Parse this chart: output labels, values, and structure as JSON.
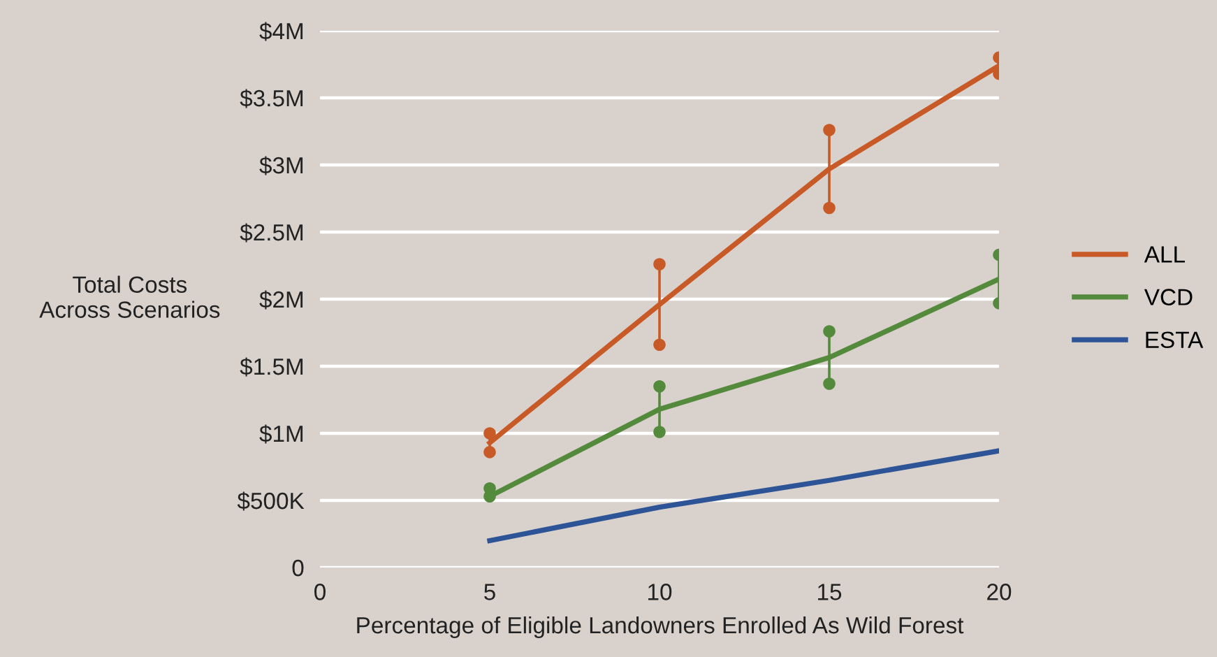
{
  "chart_data": {
    "type": "line",
    "xlabel": "Percentage of Eligible Landowners Enrolled As Wild Forest",
    "ylabel": "Total Costs\nAcross Scenarios",
    "x": [
      5,
      10,
      15,
      20
    ],
    "series": [
      {
        "name": "ALL",
        "color": "#c85a27",
        "values": [
          930000,
          1960000,
          2970000,
          3740000
        ],
        "errors": [
          70000,
          300000,
          290000,
          60000
        ]
      },
      {
        "type": "scatter",
        "marker": "circle",
        "color": "#c85a27",
        "values": [
          860000,
          1660000,
          2680000,
          3680000
        ]
      },
      {
        "type": "scatter",
        "marker": "circle",
        "color": "#c85a27",
        "values": [
          1000000,
          2260000,
          3260000,
          3800000
        ]
      },
      {
        "name": "VCD",
        "color": "#548a3c",
        "values": [
          530000,
          1180000,
          1565000,
          2150000
        ],
        "errors": [
          null,
          170000,
          195000,
          180000
        ]
      },
      {
        "type": "scatter",
        "marker": "circle",
        "color": "#548a3c",
        "values": [
          530000,
          1010000,
          1370000,
          1970000
        ]
      },
      {
        "type": "scatter",
        "marker": "circle",
        "color": "#548a3c",
        "values": [
          590000,
          1350000,
          1760000,
          2330000
        ]
      },
      {
        "name": "ESTA",
        "color": "#2d5497",
        "values": [
          200000,
          450000,
          650000,
          870000
        ]
      }
    ],
    "xlim": [
      0,
      20
    ],
    "xticks": [
      0,
      5,
      10,
      15,
      20
    ],
    "ylim": [
      0,
      4000000
    ],
    "yticks": [
      0,
      {
        "value": 500000,
        "label": "$500K"
      },
      {
        "value": 1000000,
        "label": "$1M"
      },
      {
        "value": 1500000,
        "label": "$1.5M"
      },
      {
        "value": 2000000,
        "label": "$2M"
      },
      {
        "value": 2500000,
        "label": "$2.5M"
      },
      {
        "value": 3000000,
        "label": "$3M"
      },
      {
        "value": 3500000,
        "label": "$3.5M"
      },
      {
        "value": 4000000,
        "label": "$4M"
      }
    ],
    "grid": "y",
    "legend": "right",
    "marker": "none",
    "line_style": "solid"
  }
}
